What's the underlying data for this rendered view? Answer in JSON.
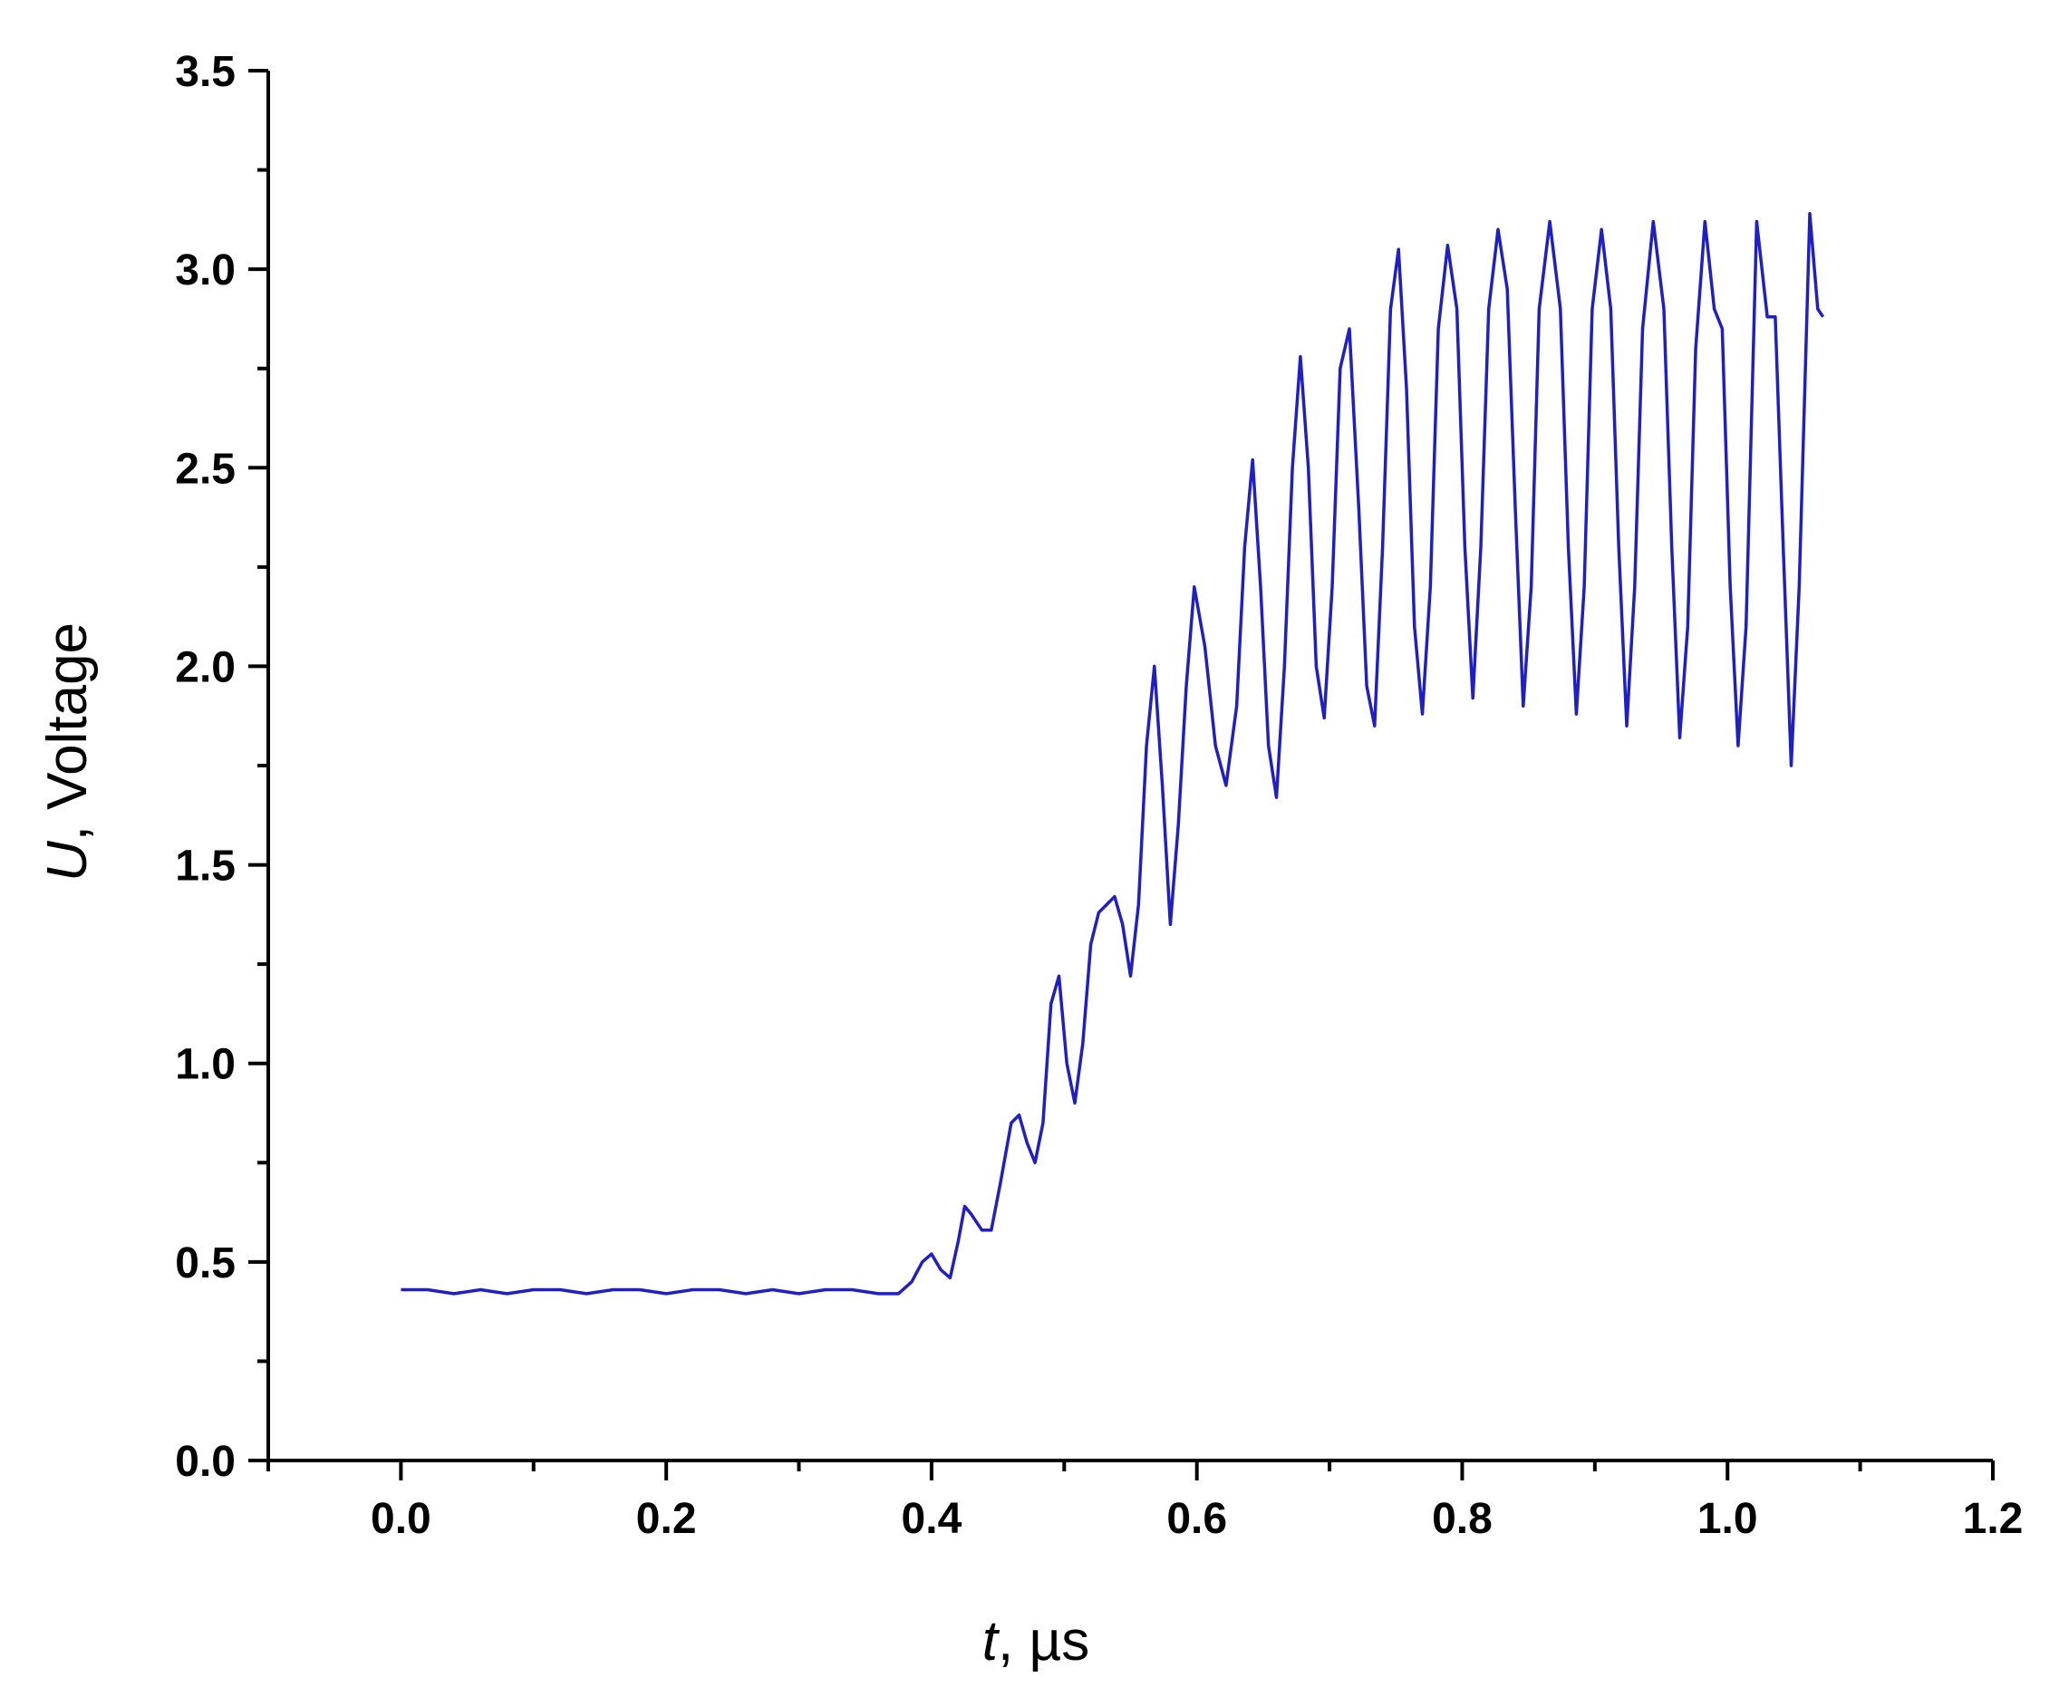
{
  "chart_data": {
    "type": "line",
    "title": "",
    "xlabel_var": "t",
    "xlabel_rest": ", µs",
    "ylabel_var": "U",
    "ylabel_rest": ", Voltage",
    "xlim": [
      -0.1,
      1.2
    ],
    "ylim": [
      0.0,
      3.5
    ],
    "x_major_ticks": [
      0.0,
      0.2,
      0.4,
      0.6,
      0.8,
      1.0,
      1.2
    ],
    "x_tick_labels": [
      "0.0",
      "0.2",
      "0.4",
      "0.6",
      "0.8",
      "1.0",
      "1.2"
    ],
    "x_minor_ticks": [
      -0.1,
      0.1,
      0.3,
      0.5,
      0.7,
      0.9,
      1.1
    ],
    "y_major_ticks": [
      0.0,
      0.5,
      1.0,
      1.5,
      2.0,
      2.5,
      3.0,
      3.5
    ],
    "y_tick_labels": [
      "0.0",
      "0.5",
      "1.0",
      "1.5",
      "2.0",
      "2.5",
      "3.0",
      "3.5"
    ],
    "y_minor_ticks": [
      0.25,
      0.75,
      1.25,
      1.75,
      2.25,
      2.75,
      3.25
    ],
    "grid": false,
    "series": [
      {
        "color": "#1f1fc8",
        "x": [
          0.0,
          0.02,
          0.04,
          0.06,
          0.08,
          0.1,
          0.12,
          0.14,
          0.16,
          0.18,
          0.2,
          0.22,
          0.24,
          0.26,
          0.28,
          0.3,
          0.32,
          0.34,
          0.36,
          0.375,
          0.385,
          0.393,
          0.4,
          0.407,
          0.414,
          0.42,
          0.425,
          0.43,
          0.438,
          0.445,
          0.452,
          0.46,
          0.466,
          0.472,
          0.478,
          0.484,
          0.49,
          0.496,
          0.502,
          0.508,
          0.514,
          0.52,
          0.526,
          0.532,
          0.538,
          0.544,
          0.55,
          0.556,
          0.562,
          0.568,
          0.574,
          0.58,
          0.586,
          0.592,
          0.598,
          0.606,
          0.614,
          0.622,
          0.63,
          0.636,
          0.642,
          0.648,
          0.654,
          0.66,
          0.666,
          0.672,
          0.678,
          0.684,
          0.69,
          0.696,
          0.702,
          0.708,
          0.715,
          0.722,
          0.728,
          0.734,
          0.74,
          0.746,
          0.752,
          0.758,
          0.764,
          0.77,
          0.776,
          0.782,
          0.789,
          0.796,
          0.802,
          0.808,
          0.814,
          0.82,
          0.827,
          0.834,
          0.84,
          0.846,
          0.852,
          0.858,
          0.866,
          0.874,
          0.88,
          0.886,
          0.892,
          0.898,
          0.905,
          0.912,
          0.918,
          0.924,
          0.93,
          0.936,
          0.944,
          0.952,
          0.958,
          0.964,
          0.97,
          0.976,
          0.983,
          0.99,
          0.996,
          1.002,
          1.008,
          1.014,
          1.022,
          1.03,
          1.036,
          1.042,
          1.048,
          1.054,
          1.062,
          1.068,
          1.072
        ],
        "y": [
          0.43,
          0.43,
          0.42,
          0.43,
          0.42,
          0.43,
          0.43,
          0.42,
          0.43,
          0.43,
          0.42,
          0.43,
          0.43,
          0.42,
          0.43,
          0.42,
          0.43,
          0.43,
          0.42,
          0.42,
          0.45,
          0.5,
          0.52,
          0.48,
          0.46,
          0.55,
          0.64,
          0.62,
          0.58,
          0.58,
          0.7,
          0.85,
          0.87,
          0.8,
          0.75,
          0.85,
          1.15,
          1.22,
          1.0,
          0.9,
          1.05,
          1.3,
          1.38,
          1.4,
          1.42,
          1.35,
          1.22,
          1.4,
          1.8,
          2.0,
          1.7,
          1.35,
          1.6,
          1.95,
          2.2,
          2.05,
          1.8,
          1.7,
          1.9,
          2.3,
          2.52,
          2.2,
          1.8,
          1.67,
          2.0,
          2.5,
          2.78,
          2.5,
          2.0,
          1.87,
          2.2,
          2.75,
          2.85,
          2.4,
          1.95,
          1.85,
          2.3,
          2.9,
          3.05,
          2.7,
          2.1,
          1.88,
          2.2,
          2.85,
          3.06,
          2.9,
          2.3,
          1.92,
          2.3,
          2.9,
          3.1,
          2.95,
          2.4,
          1.9,
          2.2,
          2.9,
          3.12,
          2.9,
          2.3,
          1.88,
          2.2,
          2.9,
          3.1,
          2.9,
          2.3,
          1.85,
          2.2,
          2.85,
          3.12,
          2.9,
          2.3,
          1.82,
          2.1,
          2.8,
          3.12,
          2.9,
          2.85,
          2.2,
          1.8,
          2.1,
          3.12,
          2.88,
          2.88,
          2.3,
          1.75,
          2.2,
          3.14,
          2.9,
          2.88
        ]
      }
    ]
  }
}
